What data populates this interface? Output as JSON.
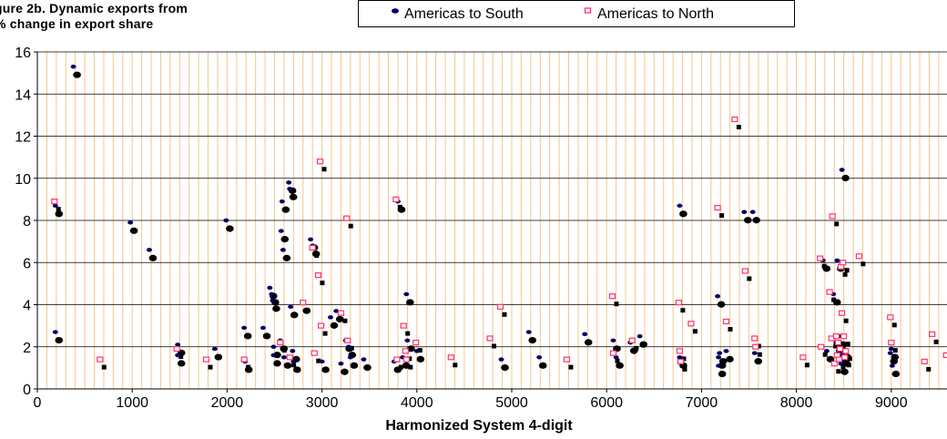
{
  "figure": {
    "title_line1": "gure 2b. Dynamic exports from",
    "title_line2": "% change in export share"
  },
  "chart_data": {
    "type": "scatter",
    "title": "gure 2b. Dynamic exports from % change in export share",
    "xlabel": "Harmonized System 4-digit",
    "ylabel": "",
    "xlim": [
      0,
      9600
    ],
    "ylim": [
      0,
      16
    ],
    "x_ticks": [
      0,
      1000,
      2000,
      3000,
      4000,
      5000,
      6000,
      7000,
      8000,
      9000
    ],
    "y_ticks": [
      0,
      2,
      4,
      6,
      8,
      10,
      12,
      14,
      16
    ],
    "grid": {
      "horizontal": true,
      "vertical_step": 100
    },
    "legend_position": "top",
    "colors": {
      "south_marker": "#000066",
      "north_marker": "#ff3366",
      "vertical_grid": "#f4c78a",
      "horizontal_grid": "#000000",
      "companion_marker": "#000000"
    },
    "series": [
      {
        "name": "Americas to South",
        "marker": "ellipse",
        "points": [
          [
            190,
            2.7
          ],
          [
            190,
            8.7
          ],
          [
            380,
            15.3
          ],
          [
            980,
            7.9
          ],
          [
            1180,
            6.6
          ],
          [
            1480,
            2.1
          ],
          [
            1480,
            1.6
          ],
          [
            1870,
            1.9
          ],
          [
            1990,
            8.0
          ],
          [
            2180,
            2.9
          ],
          [
            2190,
            1.3
          ],
          [
            2380,
            2.9
          ],
          [
            2450,
            4.8
          ],
          [
            2470,
            4.5
          ],
          [
            2480,
            4.2
          ],
          [
            2490,
            2.0
          ],
          [
            2490,
            1.6
          ],
          [
            2560,
            2.3
          ],
          [
            2570,
            7.5
          ],
          [
            2580,
            8.9
          ],
          [
            2590,
            6.6
          ],
          [
            2600,
            1.5
          ],
          [
            2650,
            9.8
          ],
          [
            2660,
            9.5
          ],
          [
            2670,
            3.9
          ],
          [
            2690,
            1.8
          ],
          [
            2700,
            1.3
          ],
          [
            2800,
            4.1
          ],
          [
            2880,
            7.1
          ],
          [
            2900,
            6.8
          ],
          [
            3000,
            1.3
          ],
          [
            3090,
            3.4
          ],
          [
            3150,
            3.7
          ],
          [
            3200,
            1.2
          ],
          [
            3250,
            2.3
          ],
          [
            3280,
            2.0
          ],
          [
            3300,
            1.5
          ],
          [
            3440,
            1.4
          ],
          [
            3760,
            1.3
          ],
          [
            3800,
            8.9
          ],
          [
            3850,
            1.5
          ],
          [
            3890,
            4.5
          ],
          [
            3900,
            2.3
          ],
          [
            4000,
            1.8
          ],
          [
            4890,
            1.4
          ],
          [
            5180,
            2.7
          ],
          [
            5290,
            1.5
          ],
          [
            5770,
            2.6
          ],
          [
            6070,
            2.3
          ],
          [
            6100,
            1.5
          ],
          [
            6250,
            2.2
          ],
          [
            6350,
            2.5
          ],
          [
            6770,
            8.7
          ],
          [
            6770,
            1.5
          ],
          [
            7170,
            4.4
          ],
          [
            7180,
            1.5
          ],
          [
            7180,
            1.1
          ],
          [
            7190,
            1.7
          ],
          [
            7260,
            1.8
          ],
          [
            7450,
            8.4
          ],
          [
            7540,
            8.4
          ],
          [
            7560,
            1.7
          ],
          [
            8280,
            6.1
          ],
          [
            8320,
            1.8
          ],
          [
            8390,
            4.5
          ],
          [
            8420,
            2.2
          ],
          [
            8430,
            6.1
          ],
          [
            8450,
            2.5
          ],
          [
            8460,
            1.8
          ],
          [
            8470,
            1.2
          ],
          [
            8480,
            10.4
          ],
          [
            8490,
            1.6
          ],
          [
            8500,
            1.9
          ],
          [
            8990,
            1.7
          ],
          [
            9000,
            1.9
          ],
          [
            9010,
            1.1
          ]
        ]
      },
      {
        "name": "Americas to North",
        "marker": "square",
        "points": [
          [
            180,
            8.9
          ],
          [
            660,
            1.4
          ],
          [
            1470,
            1.9
          ],
          [
            1780,
            1.4
          ],
          [
            2180,
            1.4
          ],
          [
            2560,
            2.2
          ],
          [
            2660,
            1.5
          ],
          [
            2800,
            4.1
          ],
          [
            2900,
            6.7
          ],
          [
            2920,
            1.7
          ],
          [
            2960,
            5.4
          ],
          [
            2980,
            10.8
          ],
          [
            2990,
            3.0
          ],
          [
            3200,
            3.6
          ],
          [
            3260,
            8.1
          ],
          [
            3270,
            2.3
          ],
          [
            3780,
            9.0
          ],
          [
            3790,
            1.4
          ],
          [
            3860,
            3.0
          ],
          [
            3880,
            1.8
          ],
          [
            3890,
            1.4
          ],
          [
            3990,
            2.2
          ],
          [
            4360,
            1.5
          ],
          [
            4770,
            2.4
          ],
          [
            4880,
            3.9
          ],
          [
            5580,
            1.4
          ],
          [
            6060,
            4.4
          ],
          [
            6070,
            1.7
          ],
          [
            6270,
            2.3
          ],
          [
            6760,
            4.1
          ],
          [
            6770,
            1.8
          ],
          [
            6780,
            1.3
          ],
          [
            6890,
            3.1
          ],
          [
            7170,
            8.6
          ],
          [
            7260,
            3.2
          ],
          [
            7350,
            12.8
          ],
          [
            7460,
            5.6
          ],
          [
            7560,
            2.4
          ],
          [
            7570,
            2.0
          ],
          [
            8070,
            1.5
          ],
          [
            8250,
            6.2
          ],
          [
            8260,
            2.0
          ],
          [
            8350,
            4.6
          ],
          [
            8370,
            2.4
          ],
          [
            8380,
            8.2
          ],
          [
            8400,
            1.2
          ],
          [
            8420,
            2.5
          ],
          [
            8430,
            1.6
          ],
          [
            8440,
            2.2
          ],
          [
            8450,
            1.4
          ],
          [
            8460,
            1.9
          ],
          [
            8470,
            5.8
          ],
          [
            8480,
            3.6
          ],
          [
            8490,
            6.0
          ],
          [
            8500,
            2.5
          ],
          [
            8510,
            1.5
          ],
          [
            8520,
            1.8
          ],
          [
            8660,
            6.3
          ],
          [
            8990,
            3.4
          ],
          [
            9000,
            2.2
          ],
          [
            9350,
            1.3
          ],
          [
            9430,
            2.6
          ],
          [
            9580,
            1.6
          ]
        ]
      }
    ]
  }
}
